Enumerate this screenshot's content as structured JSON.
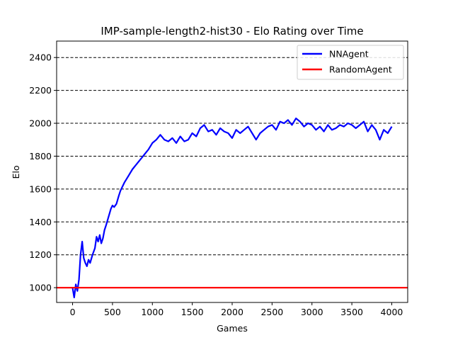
{
  "chart_data": {
    "type": "line",
    "title": "IMP-sample-length2-hist30 - Elo Rating over Time",
    "xlabel": "Games",
    "ylabel": "Elo",
    "xlim": [
      -200,
      4200
    ],
    "ylim": [
      910,
      2500
    ],
    "xticks": [
      0,
      500,
      1000,
      1500,
      2000,
      2500,
      3000,
      3500,
      4000
    ],
    "yticks": [
      1000,
      1200,
      1400,
      1600,
      1800,
      2000,
      2200,
      2400
    ],
    "grid": "horizontal dashed",
    "legend_position": "top-right",
    "series": [
      {
        "name": "NNAgent",
        "color": "#0000ff",
        "x": [
          0,
          20,
          40,
          60,
          80,
          100,
          120,
          140,
          160,
          180,
          200,
          220,
          250,
          280,
          300,
          320,
          340,
          360,
          380,
          400,
          420,
          450,
          480,
          500,
          520,
          550,
          580,
          600,
          650,
          700,
          750,
          800,
          850,
          900,
          950,
          1000,
          1050,
          1100,
          1150,
          1200,
          1250,
          1300,
          1350,
          1400,
          1450,
          1500,
          1550,
          1600,
          1650,
          1700,
          1750,
          1800,
          1850,
          1900,
          1950,
          2000,
          2050,
          2100,
          2150,
          2200,
          2250,
          2300,
          2350,
          2400,
          2450,
          2500,
          2550,
          2600,
          2650,
          2700,
          2750,
          2800,
          2850,
          2900,
          2950,
          3000,
          3050,
          3100,
          3150,
          3200,
          3250,
          3300,
          3350,
          3400,
          3450,
          3500,
          3550,
          3600,
          3650,
          3700,
          3750,
          3800,
          3850,
          3900,
          3950,
          4000
        ],
        "values": [
          1000,
          940,
          1020,
          980,
          1050,
          1200,
          1280,
          1180,
          1150,
          1130,
          1170,
          1150,
          1200,
          1240,
          1310,
          1280,
          1320,
          1270,
          1300,
          1350,
          1380,
          1430,
          1480,
          1500,
          1490,
          1510,
          1560,
          1590,
          1640,
          1680,
          1720,
          1750,
          1780,
          1810,
          1840,
          1880,
          1900,
          1930,
          1900,
          1890,
          1910,
          1880,
          1920,
          1890,
          1900,
          1940,
          1920,
          1970,
          1990,
          1950,
          1960,
          1930,
          1970,
          1950,
          1940,
          1910,
          1960,
          1940,
          1960,
          1980,
          1940,
          1900,
          1940,
          1960,
          1980,
          1990,
          1960,
          2010,
          2000,
          2020,
          1990,
          2030,
          2010,
          1980,
          2000,
          1990,
          1960,
          1980,
          1950,
          1990,
          1960,
          1970,
          1990,
          1980,
          2000,
          1990,
          1970,
          1990,
          2010,
          1950,
          1990,
          1960,
          1900,
          1960,
          1940,
          1980
        ]
      },
      {
        "name": "RandomAgent",
        "color": "#ff0000",
        "x": [
          -200,
          4200
        ],
        "values": [
          1000,
          1000
        ]
      }
    ]
  }
}
